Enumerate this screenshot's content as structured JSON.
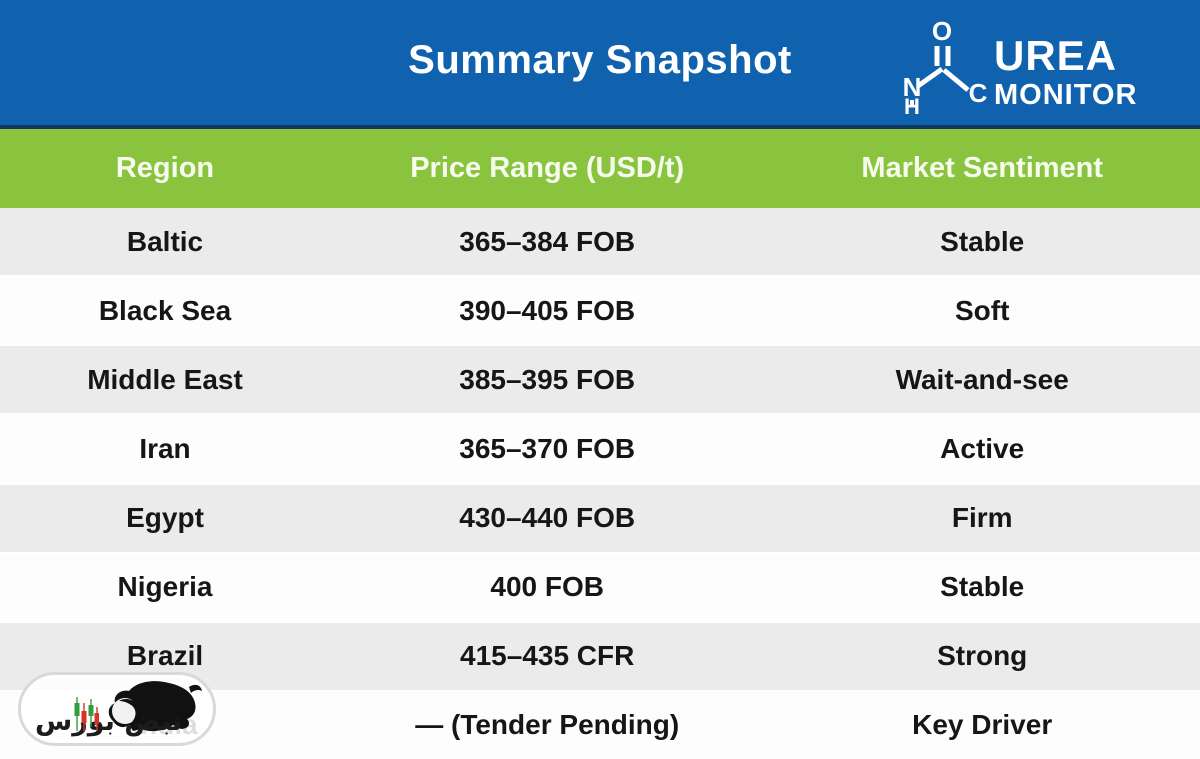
{
  "header": {
    "title": "Summary Snapshot",
    "logo": {
      "brand_line1": "UREA",
      "brand_line2": "MONITOR",
      "atoms": {
        "o": "O",
        "n": "N",
        "h": "H",
        "c": "C"
      }
    }
  },
  "table": {
    "columns": [
      "Region",
      "Price Range (USD/t)",
      "Market Sentiment"
    ],
    "rows": [
      {
        "region": "Baltic",
        "price": "365–384 FOB",
        "sentiment": "Stable"
      },
      {
        "region": "Black Sea",
        "price": "390–405 FOB",
        "sentiment": "Soft"
      },
      {
        "region": "Middle East",
        "price": "385–395 FOB",
        "sentiment": "Wait-and-see"
      },
      {
        "region": "Iran",
        "price": "365–370 FOB",
        "sentiment": "Active"
      },
      {
        "region": "Egypt",
        "price": "430–440 FOB",
        "sentiment": "Firm"
      },
      {
        "region": "Nigeria",
        "price": "400 FOB",
        "sentiment": "Stable"
      },
      {
        "region": "Brazil",
        "price": "415–435 CFR",
        "sentiment": "Strong"
      },
      {
        "region": "India",
        "price": "— (Tender Pending)",
        "sentiment": "Key Driver"
      }
    ]
  },
  "watermark": {
    "text_fa": "نبض بورس",
    "icon": "bull-icon",
    "candle_colors": [
      "#2f9e3c",
      "#d8332a",
      "#2f9e3c",
      "#d8332a"
    ]
  },
  "colors": {
    "header_blue": "#1062ae",
    "header_blue_edge": "#12375f",
    "column_green": "#8ac43f",
    "row_gray": "#ebebeb",
    "row_white": "#fdfdfd",
    "text_dark": "#161616",
    "text_white": "#ffffff"
  }
}
